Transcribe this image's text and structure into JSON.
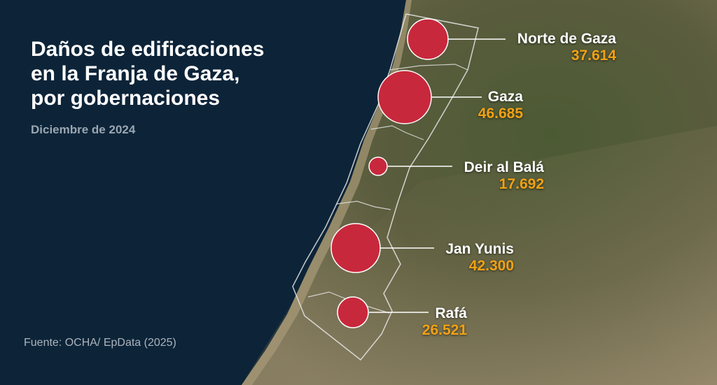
{
  "title_lines": [
    "Daños de edificaciones",
    "en la Franja de Gaza,",
    "por gobernaciones"
  ],
  "date": "Diciembre de 2024",
  "source": "Fuente: OCHA/ EpData (2025)",
  "colors": {
    "sea": "#0d2438",
    "bubble": "#c8283c",
    "value": "#f2a114",
    "border": "#e8e8e8"
  },
  "governorates": [
    {
      "name": "Norte de Gaza",
      "value_label": "37.614",
      "value": 37614
    },
    {
      "name": "Gaza",
      "value_label": "46.685",
      "value": 46685
    },
    {
      "name": "Deir al Balá",
      "value_label": "17.692",
      "value": 17692
    },
    {
      "name": "Jan Yunis",
      "value_label": "42.300",
      "value": 42300
    },
    {
      "name": "Rafá",
      "value_label": "26.521",
      "value": 26521
    }
  ]
}
